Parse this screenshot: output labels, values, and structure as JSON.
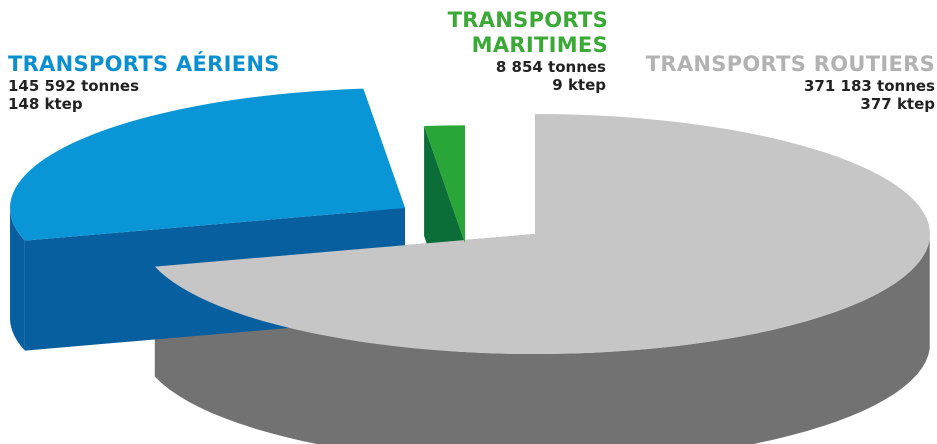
{
  "chart_data": {
    "type": "pie",
    "title": "",
    "style": "3d-exploded",
    "slices": [
      {
        "name": "TRANSPORTS ROUTIERS",
        "tonnes": 371183,
        "ktep": 377,
        "tonnes_label": "371 183 tonnes",
        "ktep_label": "377 ktep",
        "colors": {
          "label": "#b2b2b2",
          "top": "#c6c6c6",
          "side": "#727272"
        }
      },
      {
        "name": "TRANSPORTS AÉRIENS",
        "tonnes": 145592,
        "ktep": 148,
        "tonnes_label": "145 592 tonnes",
        "ktep_label": "148 ktep",
        "colors": {
          "label": "#0a8fd0",
          "top": "#0a96d6",
          "side": "#085fa0"
        }
      },
      {
        "name": "TRANSPORTS MARITIMES",
        "tonnes": 8854,
        "ktep": 9,
        "tonnes_label": "8 854 tonnes",
        "ktep_label": "9 ktep",
        "colors": {
          "label": "#3aa935",
          "top": "#29a637",
          "side": "#0b6e38"
        }
      }
    ]
  }
}
